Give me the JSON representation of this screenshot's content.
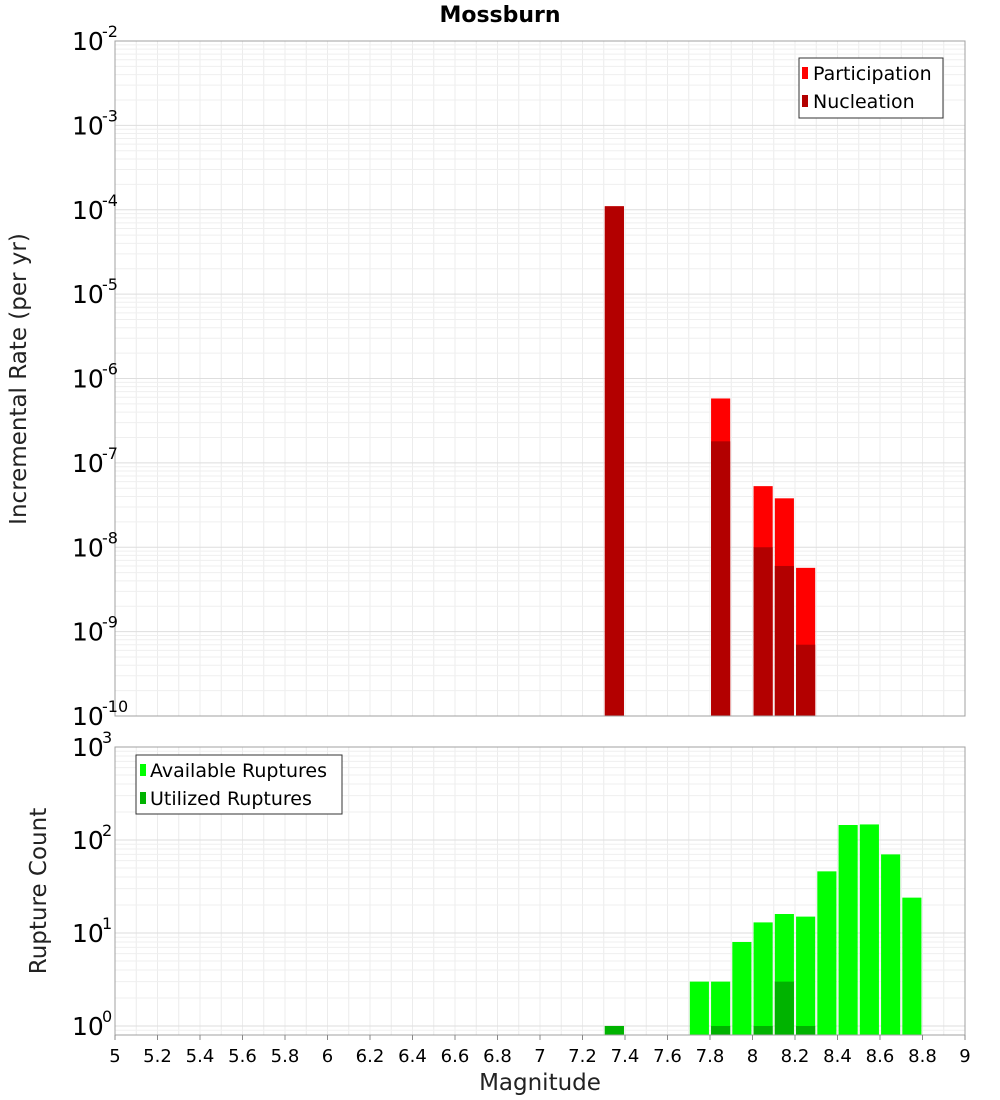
{
  "title": "Mossburn",
  "chart_data": [
    {
      "type": "bar",
      "ylabel": "Incremental Rate (per yr)",
      "yscale": "log",
      "ylim": [
        1e-10,
        0.01
      ],
      "ytick_exponents": [
        "-2",
        "-3",
        "-4",
        "-5",
        "-6",
        "-7",
        "-8",
        "-9",
        "-10"
      ],
      "ytick_base": "10",
      "xlim": [
        5,
        9
      ],
      "bar_width": 0.09,
      "legend": "top-right",
      "grid": true,
      "series": [
        {
          "name": "Participation",
          "color": "#ff0000",
          "x": [
            7.35,
            7.85,
            8.05,
            8.15,
            8.25
          ],
          "values": [
            0.00011,
            5.8e-07,
            5.3e-08,
            3.8e-08,
            5.7e-09
          ]
        },
        {
          "name": "Nucleation",
          "color": "#b30000",
          "x": [
            7.35,
            7.85,
            8.05,
            8.15,
            8.25
          ],
          "values": [
            0.00011,
            1.8e-07,
            1e-08,
            6e-09,
            7e-10
          ]
        }
      ]
    },
    {
      "type": "bar",
      "ylabel": "Rupture Count",
      "yscale": "log",
      "ylim": [
        0.8,
        1000
      ],
      "ytick_exponents": [
        "3",
        "2",
        "1",
        "0"
      ],
      "ytick_base": "10",
      "xlim": [
        5,
        9
      ],
      "bar_width": 0.09,
      "legend": "top-left",
      "grid": true,
      "xlabel": "Magnitude",
      "xticks": [
        "5",
        "5.2",
        "5.4",
        "5.6",
        "5.8",
        "6",
        "6.2",
        "6.4",
        "6.6",
        "6.8",
        "7",
        "7.2",
        "7.4",
        "7.6",
        "7.8",
        "8",
        "8.2",
        "8.4",
        "8.6",
        "8.8",
        "9"
      ],
      "series": [
        {
          "name": "Available Ruptures",
          "color": "#00ff00",
          "x": [
            7.35,
            7.75,
            7.85,
            7.95,
            8.05,
            8.15,
            8.25,
            8.35,
            8.45,
            8.55,
            8.65,
            8.75
          ],
          "values": [
            1,
            3,
            3,
            8,
            13,
            16,
            15,
            46,
            145,
            147,
            70,
            24
          ]
        },
        {
          "name": "Utilized Ruptures",
          "color": "#00b300",
          "x": [
            7.35,
            7.85,
            8.05,
            8.15,
            8.25
          ],
          "values": [
            1,
            1,
            1,
            3,
            1
          ]
        }
      ]
    }
  ]
}
